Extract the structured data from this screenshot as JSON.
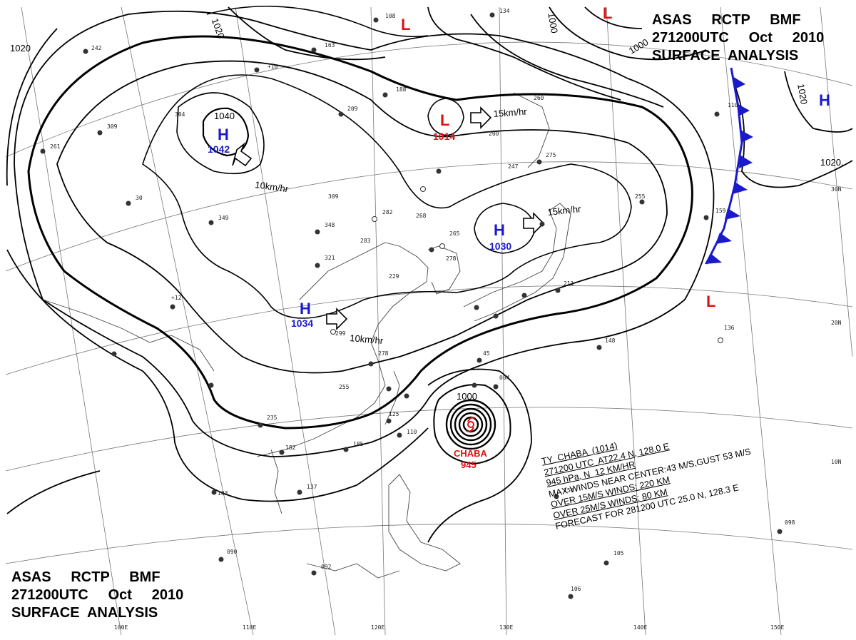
{
  "header": {
    "line1": "ASAS     RCTP     BMF",
    "line2": "271200UTC     Oct     2010",
    "line3": "SURFACE  ANALYSIS"
  },
  "pressure_centers": [
    {
      "type": "H",
      "value": "1042"
    },
    {
      "type": "H",
      "value": "1034"
    },
    {
      "type": "H",
      "value": "1030"
    },
    {
      "type": "L",
      "value": "1014"
    },
    {
      "type": "L",
      "value": ""
    },
    {
      "type": "L",
      "value": ""
    },
    {
      "type": "L",
      "value": ""
    },
    {
      "type": "H",
      "value": ""
    }
  ],
  "isobar_labels": [
    "1040",
    "1020",
    "1020",
    "1000",
    "1000",
    "1020",
    "1020.",
    "1000"
  ],
  "motion_labels": [
    "10km/hr",
    "10km/hr",
    "15km/hr",
    "15km/hr"
  ],
  "typhoon": {
    "name": "CHABA",
    "pressure": "945",
    "info": [
      "TY  CHABA  (1014)",
      "271200 UTC  AT22.4 N, 128.0 E",
      "945 hPa, N  12 KM/HR",
      "MAX WINDS NEAR CENTER:43 M/S,GUST 53 M/S",
      "OVER 15M/S WINDS: 220 KM",
      "OVER 25M/S WINDS: 80 KM",
      "FORECAST FOR 281200 UTC 25.0 N, 128.3 E"
    ]
  },
  "longitude_labels": [
    "100E",
    "110E",
    "120E",
    "130E",
    "140E",
    "150E"
  ],
  "latitude_labels": [
    "30N",
    "20N",
    "10N"
  ],
  "colors": {
    "high": "#1a1acc",
    "low": "#e01010",
    "front": "#1a1acc",
    "isobar": "#000000"
  }
}
